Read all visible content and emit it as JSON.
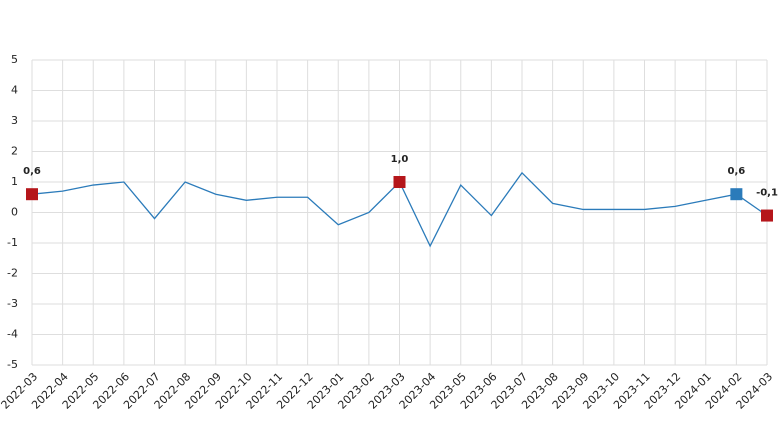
{
  "chart_data": {
    "type": "line",
    "categories": [
      "2022-03",
      "2022-04",
      "2022-05",
      "2022-06",
      "2022-07",
      "2022-08",
      "2022-09",
      "2022-10",
      "2022-11",
      "2022-12",
      "2023-01",
      "2023-02",
      "2023-03",
      "2023-04",
      "2023-05",
      "2023-06",
      "2023-07",
      "2023-08",
      "2023-09",
      "2023-10",
      "2023-11",
      "2023-12",
      "2024-01",
      "2024-02",
      "2024-03"
    ],
    "values": [
      0.6,
      0.7,
      0.9,
      1.0,
      -0.2,
      1.0,
      0.6,
      0.4,
      0.5,
      0.5,
      -0.4,
      0.0,
      1.0,
      -1.1,
      0.9,
      -0.1,
      1.3,
      0.3,
      0.1,
      0.1,
      0.1,
      0.2,
      0.4,
      0.6,
      -0.1
    ],
    "value_labels": [
      "0,6",
      null,
      null,
      null,
      null,
      null,
      null,
      null,
      null,
      null,
      null,
      null,
      "1,0",
      null,
      null,
      null,
      null,
      null,
      null,
      null,
      null,
      null,
      null,
      "0,6",
      "-0,1"
    ],
    "marker_colors": [
      "#b5161b",
      null,
      null,
      null,
      null,
      null,
      null,
      null,
      null,
      null,
      null,
      null,
      "#b5161b",
      null,
      null,
      null,
      null,
      null,
      null,
      null,
      null,
      null,
      null,
      "#2b7bba",
      "#b5161b"
    ],
    "color": "#2b7bba",
    "ylim": [
      -5,
      5
    ],
    "yticks": [
      -5,
      -4,
      -3,
      -2,
      -1,
      0,
      1,
      2,
      3,
      4,
      5
    ],
    "grid": true
  }
}
